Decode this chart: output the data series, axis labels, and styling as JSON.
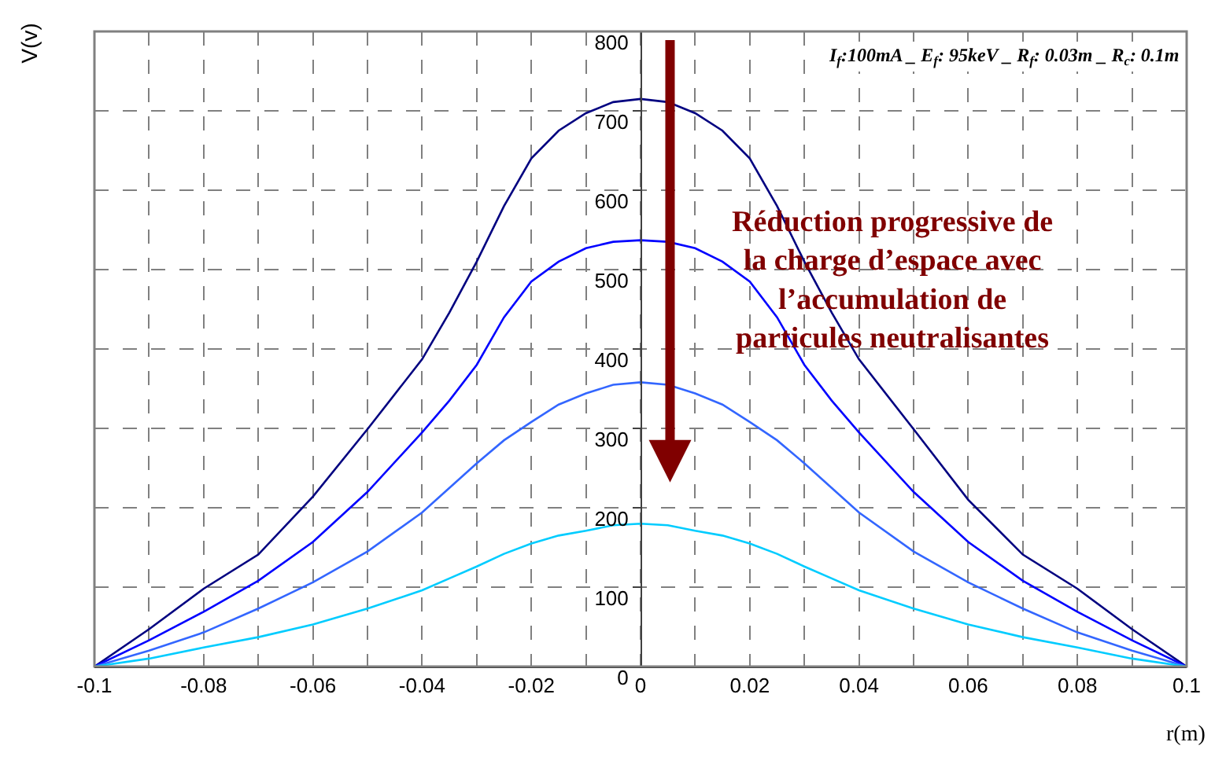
{
  "chart_data": {
    "type": "line",
    "xlabel": "r(m)",
    "ylabel": "V(v)",
    "x": [
      -0.1,
      -0.09,
      -0.08,
      -0.07,
      -0.06,
      -0.05,
      -0.04,
      -0.035,
      -0.03,
      -0.025,
      -0.02,
      -0.015,
      -0.01,
      -0.005,
      0,
      0.005,
      0.01,
      0.015,
      0.02,
      0.025,
      0.03,
      0.035,
      0.04,
      0.05,
      0.06,
      0.07,
      0.08,
      0.09,
      0.1
    ],
    "series": [
      {
        "color": "#000080",
        "values": [
          0,
          47,
          98,
          141,
          214,
          299,
          387,
          446,
          510,
          580,
          640,
          675,
          697,
          711,
          715,
          711,
          697,
          675,
          640,
          580,
          510,
          446,
          387,
          299,
          210,
          141,
          98,
          47,
          0
        ]
      },
      {
        "color": "#0000ff",
        "values": [
          0,
          33,
          69,
          108,
          157,
          220,
          295,
          335,
          380,
          440,
          485,
          510,
          527,
          535,
          537,
          535,
          527,
          510,
          485,
          440,
          380,
          335,
          295,
          220,
          157,
          108,
          69,
          33,
          0
        ]
      },
      {
        "color": "#3366ff",
        "values": [
          0,
          20,
          43,
          73,
          106,
          145,
          194,
          225,
          256,
          285,
          308,
          330,
          344,
          355,
          358,
          355,
          344,
          330,
          308,
          285,
          256,
          225,
          194,
          145,
          106,
          73,
          43,
          20,
          0
        ]
      },
      {
        "color": "#00ccff",
        "values": [
          0,
          10,
          24,
          37,
          53,
          73,
          96,
          111,
          126,
          142,
          155,
          165,
          171,
          178,
          180,
          178,
          171,
          165,
          155,
          142,
          126,
          111,
          96,
          73,
          53,
          37,
          24,
          10,
          0
        ]
      }
    ],
    "xlim": [
      -0.1,
      0.1
    ],
    "xticks": [
      -0.1,
      -0.08,
      -0.06,
      -0.04,
      -0.02,
      0,
      0.02,
      0.04,
      0.06,
      0.08,
      0.1
    ],
    "ylim": [
      0,
      800
    ],
    "yticks": [
      0,
      100,
      200,
      300,
      400,
      500,
      600,
      700,
      800
    ],
    "grid": true,
    "line_style": "solid",
    "marker": "none",
    "annotations": [
      "I$_{f}$:100mA _ E$_{f}$: 95keV _ R$_{f}$: 0.03m _ R$_{c}$: 0.1m",
      "Réduction progressive de\nla charge d’espace avec\nl’accumulation de\nparticules neutralisantes"
    ]
  }
}
